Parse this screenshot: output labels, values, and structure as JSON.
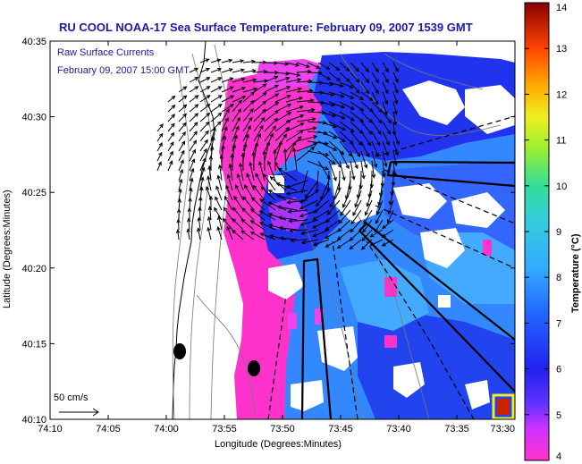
{
  "title": "RU COOL  NOAA-17  Sea Surface Temperature:  February 09, 2007 1539 GMT",
  "overlay_label_1": "Raw Surface Currents",
  "overlay_label_2": "February 09, 2007 15:00 GMT",
  "scale_label": "50 cm/s",
  "xlabel": "Longitude (Degrees:Minutes)",
  "ylabel": "Latitude (Degrees:Minutes)",
  "x_ticks": [
    "74:10",
    "74:05",
    "74:00",
    "73:55",
    "73:50",
    "73:45",
    "73:40",
    "73:35",
    "73:30"
  ],
  "y_ticks": [
    "40:35",
    "40:30",
    "40:25",
    "40:20",
    "40:15",
    "40:10"
  ],
  "colorbar": {
    "label": "Temperature (°C)",
    "ticks": [
      "14",
      "13",
      "12",
      "11",
      "10",
      "9",
      "8",
      "7",
      "6",
      "5",
      "4"
    ],
    "range": [
      4,
      14
    ]
  },
  "colors": {
    "title": "#1a1aa0",
    "land": "#ffffff",
    "cold": "#ff33cc",
    "mid": "#3399ff",
    "warm": "#3344ee"
  }
}
